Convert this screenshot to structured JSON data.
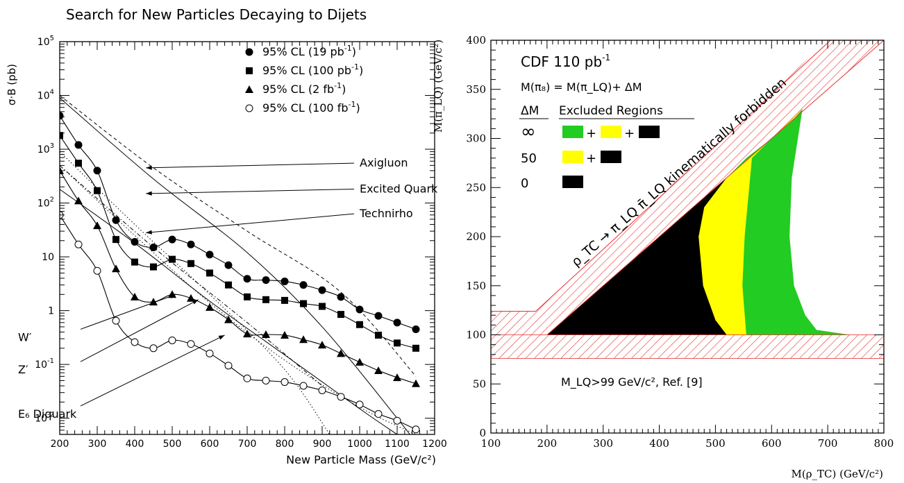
{
  "title": "Search for New Particles Decaying to Dijets",
  "chart_data": [
    {
      "type": "scatter",
      "xlabel": "New Particle Mass (GeV/c²)",
      "ylabel": "σ·B (pb)",
      "xlim": [
        200,
        1200
      ],
      "ylim": [
        0.005,
        100000
      ],
      "yscale": "log",
      "xticks": [
        "200",
        "300",
        "400",
        "500",
        "600",
        "700",
        "800",
        "900",
        "1000",
        "1100",
        "1200"
      ],
      "yticks": [
        {
          "v": 0.01,
          "base": "10",
          "exp": "-2"
        },
        {
          "v": 0.1,
          "base": "10",
          "exp": "-1"
        },
        {
          "v": 1,
          "base": "1",
          "exp": ""
        },
        {
          "v": 10,
          "base": "10",
          "exp": ""
        },
        {
          "v": 100,
          "base": "10",
          "exp": "2"
        },
        {
          "v": 1000,
          "base": "10",
          "exp": "3"
        },
        {
          "v": 10000,
          "base": "10",
          "exp": "4"
        },
        {
          "v": 100000,
          "base": "10",
          "exp": "5"
        }
      ],
      "legend": [
        {
          "pre": "95% CL (19 pb",
          "exp": "-1",
          "post": ")",
          "marker": "circle-filled"
        },
        {
          "pre": "95% CL (100 pb",
          "exp": "-1",
          "post": ")",
          "marker": "square-filled"
        },
        {
          "pre": "95% CL (2 fb",
          "exp": "-1",
          "post": ")",
          "marker": "triangle-filled"
        },
        {
          "pre": "95% CL (100 fb",
          "exp": "-1",
          "post": ")",
          "marker": "circle-open"
        }
      ],
      "series": [
        {
          "name": "95% CL (19 pb⁻¹)",
          "marker": "circle-filled",
          "x": [
            200,
            250,
            300,
            350,
            400,
            450,
            500,
            550,
            600,
            650,
            700,
            750,
            800,
            850,
            900,
            950,
            1000,
            1050,
            1100,
            1150
          ],
          "y": [
            4200,
            1200,
            400,
            48,
            19,
            15,
            21,
            17,
            11,
            7,
            3.9,
            3.7,
            3.5,
            3,
            2.4,
            1.8,
            1.05,
            0.8,
            0.6,
            0.45
          ]
        },
        {
          "name": "95% CL (100 pb⁻¹)",
          "marker": "square-filled",
          "x": [
            200,
            250,
            300,
            350,
            400,
            450,
            500,
            550,
            600,
            650,
            700,
            750,
            800,
            850,
            900,
            950,
            1000,
            1050,
            1100,
            1150
          ],
          "y": [
            1800,
            550,
            170,
            21,
            8,
            6.5,
            9,
            7.5,
            5,
            3,
            1.8,
            1.6,
            1.55,
            1.35,
            1.2,
            0.85,
            0.55,
            0.35,
            0.25,
            0.2
          ]
        },
        {
          "name": "95% CL (2 fb⁻¹)",
          "marker": "triangle-filled",
          "x": [
            200,
            250,
            300,
            350,
            400,
            450,
            500,
            550,
            600,
            650,
            700,
            750,
            800,
            850,
            900,
            950,
            1000,
            1050,
            1100,
            1150
          ],
          "y": [
            400,
            110,
            38,
            6,
            1.8,
            1.45,
            2,
            1.7,
            1.15,
            0.68,
            0.37,
            0.36,
            0.35,
            0.29,
            0.23,
            0.16,
            0.11,
            0.077,
            0.057,
            0.044
          ]
        },
        {
          "name": "95% CL (100 fb⁻¹)",
          "marker": "circle-open",
          "x": [
            200,
            250,
            300,
            350,
            400,
            450,
            500,
            550,
            600,
            650,
            700,
            750,
            800,
            850,
            900,
            950,
            1000,
            1050,
            1100,
            1150
          ],
          "y": [
            60,
            17,
            5.5,
            0.65,
            0.26,
            0.2,
            0.28,
            0.24,
            0.16,
            0.095,
            0.055,
            0.05,
            0.047,
            0.04,
            0.033,
            0.025,
            0.018,
            0.012,
            0.009,
            0.0062
          ]
        }
      ],
      "theory_curves": [
        {
          "style": "dashed",
          "x": [
            200,
            450,
            700,
            950,
            1150
          ],
          "y": [
            10000,
            450,
            30,
            2.2,
            0.06
          ]
        },
        {
          "style": "solid",
          "x": [
            200,
            450,
            700,
            900,
            1100,
            1150
          ],
          "y": [
            9000,
            280,
            12,
            0.5,
            0.01,
            0.0035
          ]
        },
        {
          "style": "solid",
          "x": [
            200,
            400,
            600,
            800,
            1000,
            1100
          ],
          "y": [
            180,
            18,
            1.5,
            0.15,
            0.015,
            0.005
          ]
        },
        {
          "style": "dotted",
          "x": [
            200,
            400,
            600,
            800,
            920
          ],
          "y": [
            900,
            40,
            2,
            0.08,
            0.005
          ]
        },
        {
          "style": "dotted",
          "x": [
            200,
            400,
            600,
            800,
            1000,
            1150
          ],
          "y": [
            500,
            25,
            1.4,
            0.12,
            0.016,
            0.005
          ]
        },
        {
          "style": "dashdot",
          "x": [
            200,
            450,
            700,
            900
          ],
          "y": [
            500,
            15,
            0.6,
            0.04
          ]
        }
      ],
      "annotations": [
        {
          "text": "Axigluon",
          "x": 1000,
          "y": 700,
          "ax": 430,
          "ay": 450
        },
        {
          "text": "Excited Quark",
          "x": 1000,
          "y": 230,
          "ax": 430,
          "ay": 150
        },
        {
          "text": "Technirho",
          "x": 1000,
          "y": 80,
          "ax": 430,
          "ay": 28
        },
        {
          "text": "W′",
          "x": 200,
          "y": 0.4,
          "ax": 510,
          "ay": 2.0
        },
        {
          "text": "Z′",
          "x": 200,
          "y": 0.1,
          "ax": 570,
          "ay": 1.6
        },
        {
          "text": "E₆ Diquark",
          "x": 200,
          "y": 0.015,
          "ax": 640,
          "ay": 0.35
        }
      ]
    },
    {
      "type": "area",
      "xlabel": "M(ρ_TC)   (GeV/c²)",
      "ylabel": "M(π_LQ)   (GeV/c²)",
      "xlim": [
        100,
        800
      ],
      "ylim": [
        0,
        400
      ],
      "xticks": [
        "100",
        "200",
        "300",
        "400",
        "500",
        "600",
        "700",
        "800"
      ],
      "yticks": [
        "0",
        "50",
        "100",
        "150",
        "200",
        "250",
        "300",
        "350",
        "400"
      ],
      "header": "CDF 110 pb",
      "header_exp": "-1",
      "formula": "M(π₈) = M(π_LQ)+ ΔM",
      "table_head": [
        "ΔM",
        "Excluded Regions"
      ],
      "table_rows": [
        {
          "dm": "∞",
          "swatches": [
            "#22cc22",
            "#ffff00",
            "#000000"
          ]
        },
        {
          "dm": "50",
          "swatches": [
            "#ffff00",
            "#000000"
          ]
        },
        {
          "dm": "0",
          "swatches": [
            "#000000"
          ]
        }
      ],
      "forbidden_text": "ρ_TC → π_LQ π̄_LQ kinematically forbidden",
      "limit_text": "M_LQ>99 GeV/c², Ref. [9]",
      "colors": {
        "green": "#22cc22",
        "yellow": "#ffff00",
        "black": "#000000",
        "hatch": "#e83030"
      },
      "regions": [
        {
          "name": "green",
          "x": [
            200,
            520,
            555,
            600,
            655,
            636,
            632,
            640,
            660,
            680,
            740
          ],
          "y": [
            100,
            260,
            280,
            300,
            330,
            260,
            200,
            150,
            120,
            105,
            100
          ]
        },
        {
          "name": "yellow",
          "x": [
            200,
            520,
            570,
            600,
            655,
            640,
            600,
            565,
            552,
            548,
            555
          ],
          "y": [
            100,
            260,
            285,
            300,
            330,
            320,
            300,
            280,
            200,
            150,
            100
          ]
        },
        {
          "name": "black",
          "x": [
            200,
            520,
            480,
            470,
            478,
            500,
            520
          ],
          "y": [
            100,
            260,
            230,
            200,
            150,
            115,
            100
          ]
        }
      ]
    }
  ]
}
